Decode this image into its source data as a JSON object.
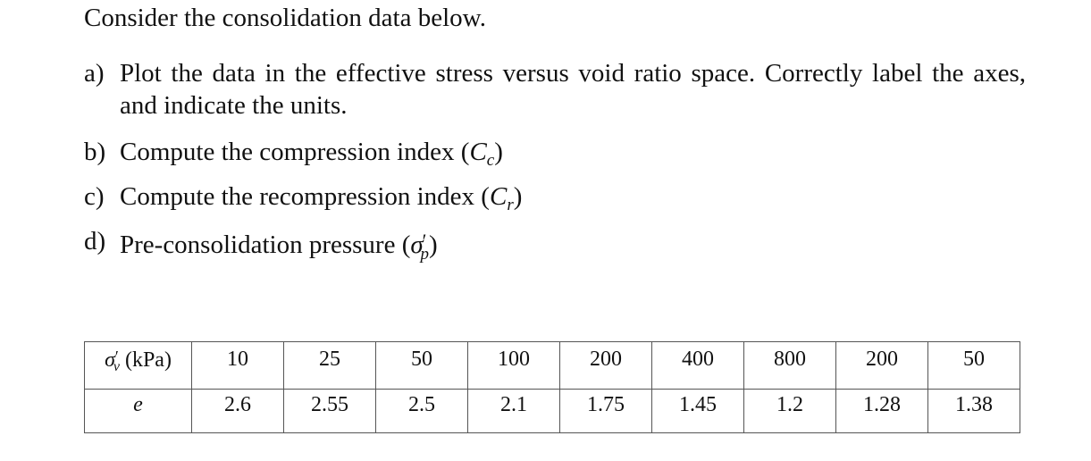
{
  "intro": "Consider the consolidation data below.",
  "questions": [
    {
      "marker": "a)",
      "text": "Plot the data in the effective stress versus void ratio space. Correctly label the axes, and indicate the units."
    },
    {
      "marker": "b)",
      "text": "Compute the compression index (",
      "symbol": "C",
      "subscript": "c",
      "close": ")"
    },
    {
      "marker": "c)",
      "text": "Compute the recompression index (",
      "symbol": "C",
      "subscript": "r",
      "close": ")"
    },
    {
      "marker": "d)",
      "text": "Pre-consolidation pressure (",
      "symbol": "σ",
      "prime": "′",
      "subscript": "p",
      "close": ")"
    }
  ],
  "table": {
    "row1": {
      "header_symbol": "σ",
      "header_prime": "′",
      "header_subscript": "v",
      "header_unit": " (kPa)",
      "values": [
        "10",
        "25",
        "50",
        "100",
        "200",
        "400",
        "800",
        "200",
        "50"
      ]
    },
    "row2": {
      "header": "e",
      "values": [
        "2.6",
        "2.55",
        "2.5",
        "2.1",
        "1.75",
        "1.45",
        "1.2",
        "1.28",
        "1.38"
      ]
    }
  }
}
